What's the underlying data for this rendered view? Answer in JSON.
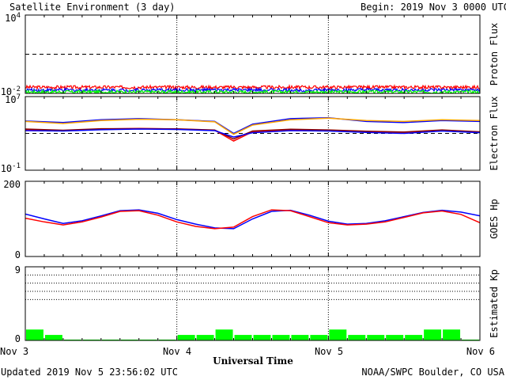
{
  "header": {
    "title": "Satellite Environment (3 day)",
    "begin": "Begin:  2019 Nov 3 0000 UTC"
  },
  "footer": {
    "updated": "Updated 2019 Nov  5 23:56:02 UTC",
    "credit": "NOAA/SWPC Boulder, CO USA"
  },
  "xaxis": {
    "label": "Universal Time",
    "ticks": [
      "Nov 3",
      "Nov 4",
      "Nov 5",
      "Nov 6"
    ]
  },
  "colors": {
    "red": "#ff0000",
    "blue": "#0000ff",
    "green": "#00ff00",
    "orange": "#ffa500",
    "brown": "#8b0000"
  },
  "chart_data": [
    {
      "type": "line",
      "panel": "proton",
      "ylabel": "Proton Flux",
      "yscale": "log",
      "ylim": [
        0.01,
        10000
      ],
      "ytick_labels": [
        "10^4",
        "10^-2"
      ],
      "threshold": 10,
      "x_unit": "hours since Nov 3 0000 UTC",
      "x": [
        0,
        72
      ],
      "series": [
        {
          "color": "red",
          "level": 0.03
        },
        {
          "color": "blue",
          "level": 0.018
        },
        {
          "color": "green",
          "level": 0.013
        }
      ]
    },
    {
      "type": "line",
      "panel": "electron",
      "ylabel": "Electron Flux",
      "yscale": "log",
      "ylim": [
        0.1,
        10000000
      ],
      "ytick_labels": [
        "10^7",
        "10^-1"
      ],
      "threshold": 1000,
      "x": [
        0,
        6,
        12,
        18,
        24,
        30,
        33,
        36,
        42,
        48,
        54,
        60,
        66,
        72
      ],
      "series": [
        {
          "color": "blue",
          "values": [
            22000,
            15000,
            30000,
            40000,
            30000,
            20000,
            1000,
            10000,
            40000,
            50000,
            20000,
            15000,
            25000,
            20000
          ]
        },
        {
          "color": "orange",
          "values": [
            20000,
            12000,
            25000,
            35000,
            30000,
            18000,
            800,
            8000,
            30000,
            45000,
            25000,
            20000,
            30000,
            25000
          ]
        },
        {
          "color": "red",
          "values": [
            2500,
            2000,
            3000,
            3500,
            3000,
            2200,
            150,
            1500,
            2500,
            2200,
            1500,
            1200,
            2200,
            1300
          ]
        },
        {
          "color": "brown",
          "values": [
            3000,
            2200,
            3200,
            3300,
            3100,
            2300,
            250,
            1800,
            2800,
            2400,
            1700,
            1400,
            2400,
            1500
          ]
        },
        {
          "color": "blue",
          "values": [
            2000,
            1800,
            2500,
            3000,
            2700,
            2000,
            400,
            1200,
            2000,
            1800,
            1300,
            1000,
            1800,
            1200
          ]
        }
      ]
    },
    {
      "type": "line",
      "panel": "goes_hp",
      "ylabel": "GOES Hp",
      "ylim": [
        0,
        200
      ],
      "ytick_labels": [
        "200",
        "0"
      ],
      "x": [
        0,
        3,
        6,
        9,
        12,
        15,
        18,
        21,
        24,
        27,
        30,
        33,
        36,
        39,
        42,
        45,
        48,
        51,
        54,
        57,
        60,
        63,
        66,
        69,
        72
      ],
      "series": [
        {
          "color": "blue",
          "values": [
            113,
            100,
            88,
            95,
            108,
            122,
            124,
            115,
            98,
            86,
            76,
            74,
            100,
            120,
            123,
            110,
            94,
            86,
            88,
            95,
            106,
            117,
            123,
            118,
            108
          ]
        },
        {
          "color": "red",
          "values": [
            102,
            92,
            84,
            92,
            105,
            120,
            122,
            110,
            92,
            80,
            74,
            78,
            106,
            124,
            122,
            106,
            90,
            84,
            86,
            92,
            104,
            116,
            121,
            112,
            90
          ]
        }
      ]
    },
    {
      "type": "bar",
      "panel": "kp",
      "ylabel": "Estimated Kp",
      "ylim": [
        0,
        9
      ],
      "ytick_labels": [
        "9",
        "0"
      ],
      "bar_width_hours": 3,
      "x": [
        0,
        3,
        6,
        9,
        12,
        15,
        18,
        21,
        24,
        27,
        30,
        33,
        36,
        39,
        42,
        45,
        48,
        51,
        54,
        57,
        60,
        63,
        66,
        69
      ],
      "values": [
        1.33,
        0.67,
        0.1,
        0.1,
        0.1,
        0.1,
        0.1,
        0.1,
        0.67,
        0.67,
        1.33,
        0.67,
        0.67,
        0.67,
        0.67,
        0.67,
        1.33,
        0.67,
        0.67,
        0.67,
        0.67,
        1.33,
        1.33,
        0.1
      ]
    }
  ]
}
